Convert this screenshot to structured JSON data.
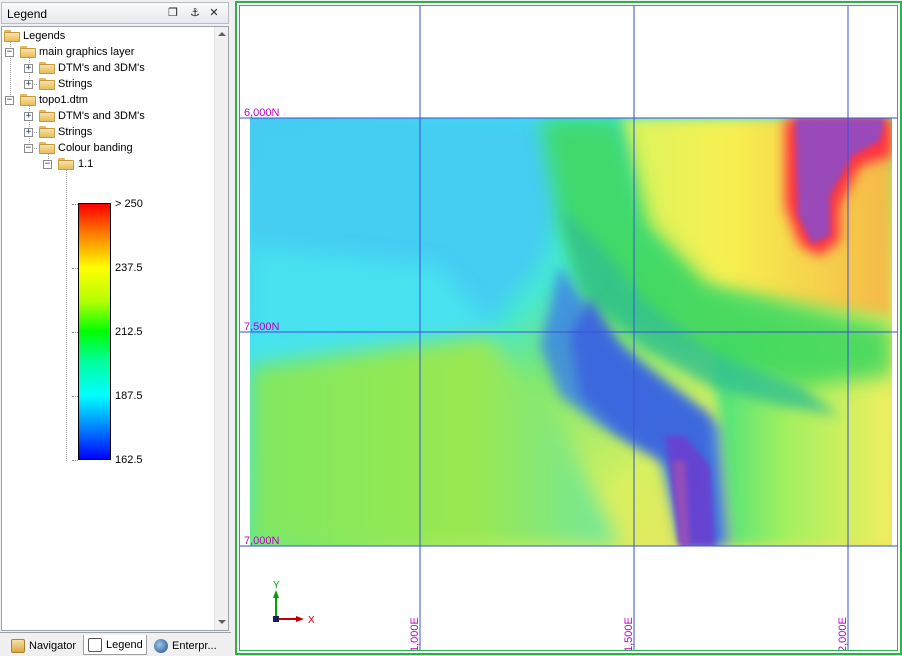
{
  "panel": {
    "title": "Legend",
    "buttons": {
      "float": "❐",
      "pin": "⚓",
      "close": "✕"
    }
  },
  "tree": {
    "root": "Legends",
    "main_layer": "main graphics layer",
    "main_dtm": "DTM's and 3DM's",
    "main_strings": "Strings",
    "topo": "topo1.dtm",
    "topo_dtm": "DTM's and 3DM's",
    "topo_strings": "Strings",
    "colour_banding": "Colour banding",
    "band": "1.1"
  },
  "scale": {
    "labels": [
      "> 250",
      "237.5",
      "212.5",
      "187.5",
      "162.5"
    ],
    "colors": [
      "#ff0000",
      "#ffff00",
      "#00ff00",
      "#00ffff",
      "#0000ff"
    ]
  },
  "tabs": {
    "navigator": "Navigator",
    "legend": "Legend",
    "enterprise": "Enterpr..."
  },
  "viewport": {
    "northings": [
      "6,000N",
      "7,500N",
      "7,000N"
    ],
    "eastings": [
      "1,000E",
      "1,500E",
      "2,000E"
    ],
    "axis_y": "Y",
    "axis_x": "X",
    "grid_color": "#3a50d8",
    "label_color": "#c000c0"
  }
}
